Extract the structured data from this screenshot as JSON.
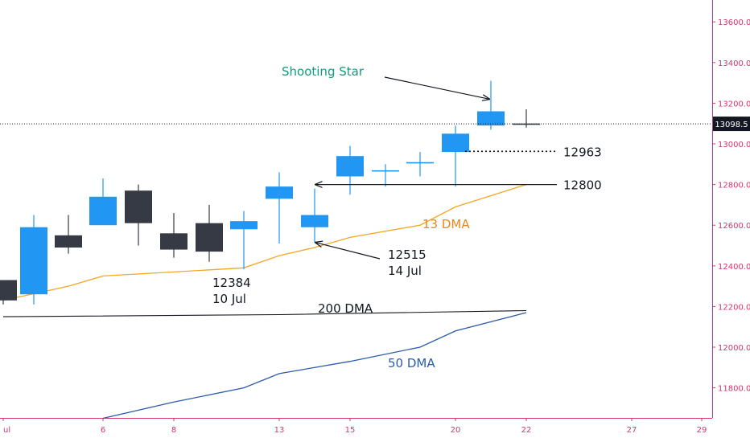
{
  "chart_data": {
    "type": "candlestick",
    "title": "",
    "xlabel": "",
    "ylabel": "",
    "ylim": [
      11650,
      13700
    ],
    "grid": false,
    "y_ticks": [
      "11800.0",
      "12000.0",
      "12200.0",
      "12400.0",
      "12600.0",
      "12800.0",
      "13000.0",
      "13200.0",
      "13400.0",
      "13600.0"
    ],
    "x_ticks": [
      {
        "day": 1,
        "label": "ul"
      },
      {
        "day": 6,
        "label": "6"
      },
      {
        "day": 8,
        "label": "8"
      },
      {
        "day": 13,
        "label": "13"
      },
      {
        "day": 15,
        "label": "15"
      },
      {
        "day": 20,
        "label": "20"
      },
      {
        "day": 22,
        "label": "22"
      },
      {
        "day": 27,
        "label": "27"
      },
      {
        "day": 29,
        "label": "29"
      }
    ],
    "colors": {
      "up": "#2196f3",
      "down": "#363a45",
      "dma13": "#f5a623",
      "dma50": "#2a5caa",
      "dma200": "#131722",
      "axis_text": "#d6336c",
      "shooting_star_text": "#139980",
      "dma13_text": "#e8871e"
    },
    "candles": [
      {
        "day": 1,
        "open": 12330,
        "high": 12330,
        "low": 12210,
        "close": 12230
      },
      {
        "day": 2,
        "open": 12260,
        "high": 12650,
        "low": 12210,
        "close": 12590
      },
      {
        "day": 3,
        "open": 12550,
        "high": 12650,
        "low": 12460,
        "close": 12490
      },
      {
        "day": 6,
        "open": 12600,
        "high": 12830,
        "low": 12600,
        "close": 12740
      },
      {
        "day": 7,
        "open": 12770,
        "high": 12800,
        "low": 12500,
        "close": 12610
      },
      {
        "day": 8,
        "open": 12560,
        "high": 12660,
        "low": 12440,
        "close": 12480
      },
      {
        "day": 9,
        "open": 12610,
        "high": 12700,
        "low": 12420,
        "close": 12470
      },
      {
        "day": 10,
        "open": 12580,
        "high": 12670,
        "low": 12384,
        "close": 12620
      },
      {
        "day": 13,
        "open": 12730,
        "high": 12860,
        "low": 12510,
        "close": 12790
      },
      {
        "day": 14,
        "open": 12590,
        "high": 12780,
        "low": 12515,
        "close": 12650
      },
      {
        "day": 15,
        "open": 12840,
        "high": 12990,
        "low": 12750,
        "close": 12940
      },
      {
        "day": 16,
        "open": 12870,
        "high": 12900,
        "low": 12790,
        "close": 12870
      },
      {
        "day": 17,
        "open": 12910,
        "high": 12960,
        "low": 12840,
        "close": 12910
      },
      {
        "day": 20,
        "open": 12960,
        "high": 13090,
        "low": 12790,
        "close": 13050
      },
      {
        "day": 21,
        "open": 13090,
        "high": 13310,
        "low": 13070,
        "close": 13160
      },
      {
        "day": 22,
        "open": 13100,
        "high": 13170,
        "low": 13080,
        "close": 13098.5
      }
    ],
    "series": [
      {
        "name": "13 DMA",
        "points": [
          [
            1,
            12230
          ],
          [
            3,
            12300
          ],
          [
            6,
            12350
          ],
          [
            8,
            12370
          ],
          [
            10,
            12390
          ],
          [
            13,
            12450
          ],
          [
            14,
            12490
          ],
          [
            15,
            12540
          ],
          [
            17,
            12600
          ],
          [
            20,
            12690
          ],
          [
            22,
            12800
          ]
        ]
      },
      {
        "name": "200 DMA",
        "points": [
          [
            1,
            12150
          ],
          [
            13,
            12160
          ],
          [
            22,
            12180
          ]
        ]
      },
      {
        "name": "50 DMA",
        "points": [
          [
            6,
            11650
          ],
          [
            8,
            11730
          ],
          [
            10,
            11800
          ],
          [
            13,
            11870
          ],
          [
            15,
            11930
          ],
          [
            17,
            12000
          ],
          [
            20,
            12080
          ],
          [
            22,
            12170
          ]
        ]
      }
    ],
    "last_price": "13098.5",
    "last_price_value": 13098.5,
    "annotations": [
      {
        "id": "shooting-star",
        "text": "Shooting Star"
      },
      {
        "id": "level-12963",
        "text": "12963",
        "value": 12963
      },
      {
        "id": "level-12800",
        "text": "12800",
        "value": 12800
      },
      {
        "id": "dma13",
        "text": "13 DMA"
      },
      {
        "id": "dma200",
        "text": "200 DMA"
      },
      {
        "id": "dma50",
        "text": "50 DMA"
      },
      {
        "id": "low-14jul",
        "lines": [
          "12515",
          "14 Jul"
        ]
      },
      {
        "id": "low-10jul",
        "lines": [
          "12384",
          "10 Jul"
        ]
      }
    ]
  }
}
